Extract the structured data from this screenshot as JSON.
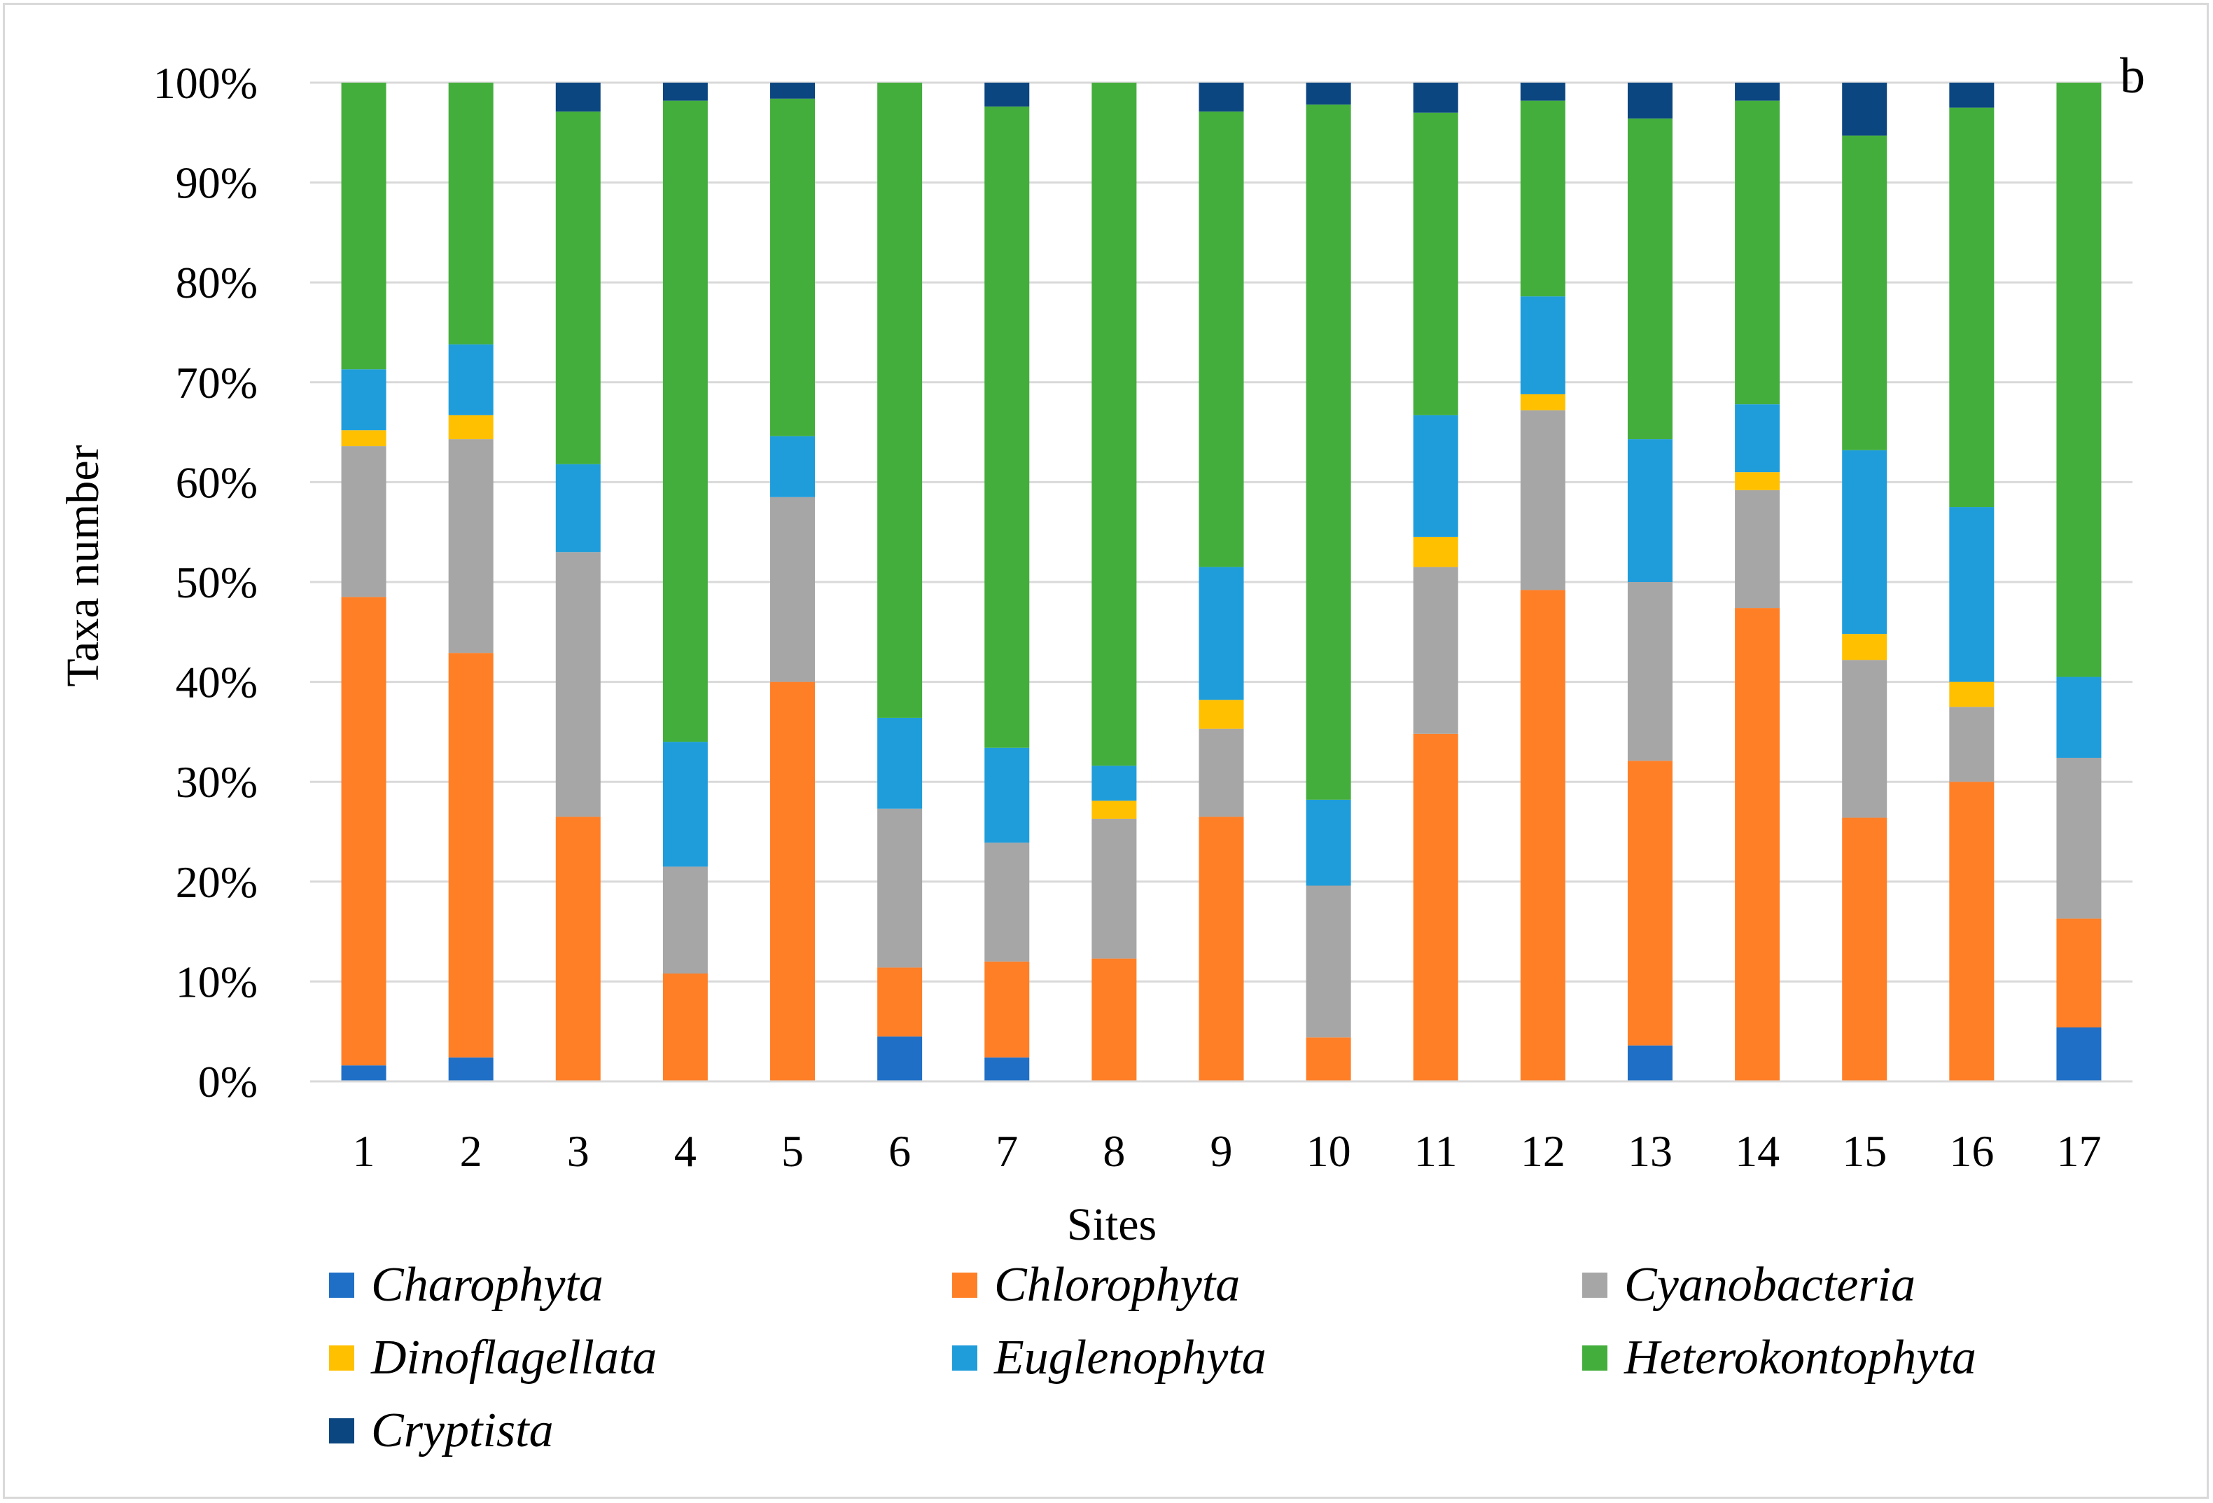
{
  "chart_data": {
    "type": "bar",
    "stacked": true,
    "panel_label": "b",
    "xlabel": "Sites",
    "ylabel": "Taxa number",
    "ylim": [
      0,
      100
    ],
    "yticks": [
      "0%",
      "10%",
      "20%",
      "30%",
      "40%",
      "50%",
      "60%",
      "70%",
      "80%",
      "90%",
      "100%"
    ],
    "categories": [
      "1",
      "2",
      "3",
      "4",
      "5",
      "6",
      "7",
      "8",
      "9",
      "10",
      "11",
      "12",
      "13",
      "14",
      "15",
      "16",
      "17"
    ],
    "grid": true,
    "legend_position": "bottom",
    "series": [
      {
        "name": "Charophyta",
        "color": "#1f6fc7",
        "values": [
          1.6,
          2.4,
          0,
          0,
          0,
          4.5,
          2.4,
          0,
          0,
          0,
          0,
          0,
          3.6,
          0,
          0,
          0,
          5.4
        ]
      },
      {
        "name": "Chlorophyta",
        "color": "#ff7f27",
        "values": [
          46.9,
          40.5,
          26.5,
          10.8,
          40.0,
          6.9,
          9.6,
          12.3,
          26.5,
          4.4,
          34.8,
          49.2,
          28.5,
          47.4,
          26.4,
          30.0,
          10.9
        ]
      },
      {
        "name": "Cyanobacteria",
        "color": "#a6a6a6",
        "values": [
          15.1,
          21.4,
          26.5,
          10.7,
          18.5,
          15.9,
          11.9,
          14.0,
          8.8,
          15.2,
          16.7,
          18.0,
          17.9,
          11.8,
          15.8,
          7.5,
          16.1
        ]
      },
      {
        "name": "Dinoflagellata",
        "color": "#ffc000",
        "values": [
          1.6,
          2.4,
          0,
          0,
          0,
          0,
          0,
          1.8,
          2.9,
          0,
          3.0,
          1.6,
          0,
          1.8,
          2.6,
          2.5,
          0
        ]
      },
      {
        "name": "Euglenophyta",
        "color": "#1f9ddb",
        "values": [
          6.1,
          7.1,
          8.8,
          12.5,
          6.1,
          9.1,
          9.5,
          3.5,
          13.3,
          8.6,
          12.2,
          9.8,
          14.3,
          6.8,
          18.4,
          17.5,
          8.1
        ]
      },
      {
        "name": "Heterokontophyta",
        "color": "#43ae3c",
        "values": [
          28.7,
          26.2,
          35.3,
          64.2,
          33.8,
          63.6,
          64.2,
          68.4,
          45.6,
          69.6,
          30.3,
          19.6,
          32.1,
          30.4,
          31.5,
          40.0,
          59.5
        ]
      },
      {
        "name": "Cryptista",
        "color": "#0b4680",
        "values": [
          0,
          0,
          2.9,
          1.8,
          1.6,
          0,
          2.4,
          0,
          2.9,
          2.2,
          3.0,
          1.8,
          3.6,
          1.8,
          5.3,
          2.5,
          0
        ]
      }
    ]
  }
}
